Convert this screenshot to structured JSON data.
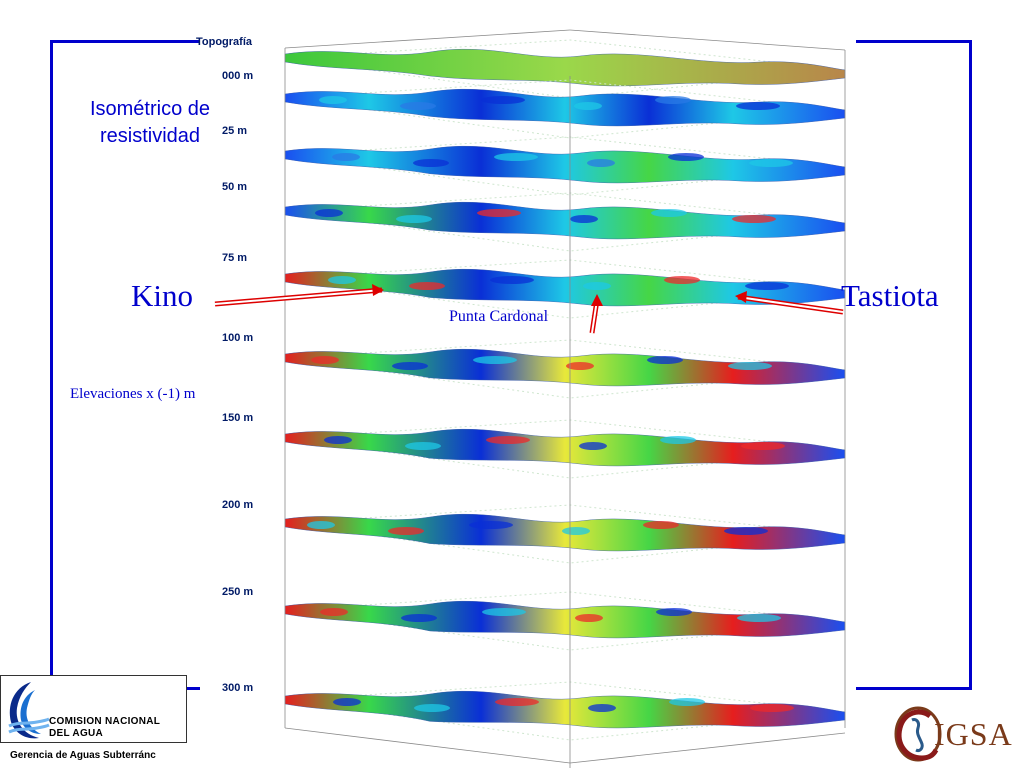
{
  "title": "Isométrico de resistividad",
  "locations": {
    "west": "Kino",
    "east": "Tastiota",
    "center": "Punta Cardonal"
  },
  "elevation_note": "Elevaciones x (-1) m",
  "figure": {
    "top_layer_label": "Topografía",
    "layers": [
      "000 m",
      "25 m",
      "50 m",
      "75 m",
      "100 m",
      "150 m",
      "200 m",
      "250 m",
      "300 m"
    ]
  },
  "logos": {
    "cna_line1": "COMISION NACIONAL",
    "cna_line2": "DEL  AGUA",
    "gerencia": "Gerencia de Aguas Subterránc",
    "cigsa": "IGSA"
  },
  "colors": {
    "frame": "#0000cc",
    "label_text": "#0000cc",
    "arrow": "#dd0000",
    "low_resistivity": "#0a2fd6",
    "mid_resistivity": "#1ec8e6",
    "high_resistivity": "#e61e1e"
  }
}
